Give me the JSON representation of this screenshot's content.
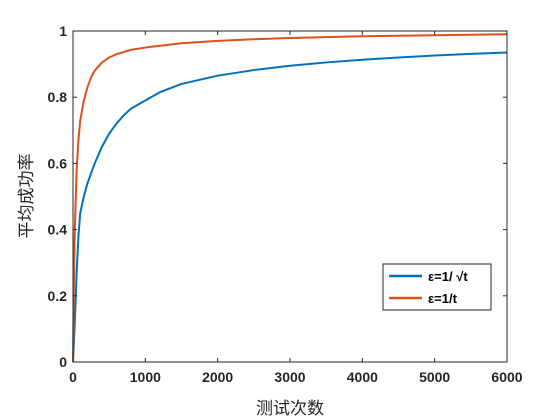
{
  "chart_data": {
    "type": "line",
    "title": "",
    "xlabel": "测试次数",
    "ylabel": "平均成功率",
    "xlim": [
      0,
      6000
    ],
    "ylim": [
      0,
      1
    ],
    "xticks": [
      "0",
      "1000",
      "2000",
      "3000",
      "4000",
      "5000",
      "6000"
    ],
    "yticks": [
      "0",
      "0.2",
      "0.4",
      "0.6",
      "0.8",
      "1"
    ],
    "grid": false,
    "legend_position": "lower-right",
    "series": [
      {
        "name": "ε=1/ √t",
        "color": "#0072BD",
        "x": [
          0,
          25,
          50,
          75,
          100,
          150,
          200,
          250,
          300,
          400,
          500,
          600,
          700,
          800,
          1000,
          1200,
          1500,
          2000,
          2500,
          3000,
          3500,
          4000,
          4500,
          5000,
          5500,
          6000
        ],
        "y": [
          0.0,
          0.12,
          0.27,
          0.38,
          0.45,
          0.5,
          0.54,
          0.57,
          0.6,
          0.65,
          0.69,
          0.72,
          0.745,
          0.765,
          0.79,
          0.815,
          0.84,
          0.865,
          0.882,
          0.895,
          0.905,
          0.913,
          0.92,
          0.926,
          0.931,
          0.935
        ]
      },
      {
        "name": "ε=1/t",
        "color": "#D95319",
        "x": [
          0,
          10,
          25,
          50,
          75,
          100,
          150,
          200,
          250,
          300,
          400,
          500,
          600,
          800,
          1000,
          1500,
          2000,
          2500,
          3000,
          4000,
          5000,
          6000
        ],
        "y": [
          0.0,
          0.2,
          0.4,
          0.58,
          0.67,
          0.73,
          0.79,
          0.83,
          0.86,
          0.88,
          0.905,
          0.92,
          0.93,
          0.943,
          0.95,
          0.963,
          0.97,
          0.975,
          0.979,
          0.984,
          0.987,
          0.99
        ]
      }
    ]
  }
}
